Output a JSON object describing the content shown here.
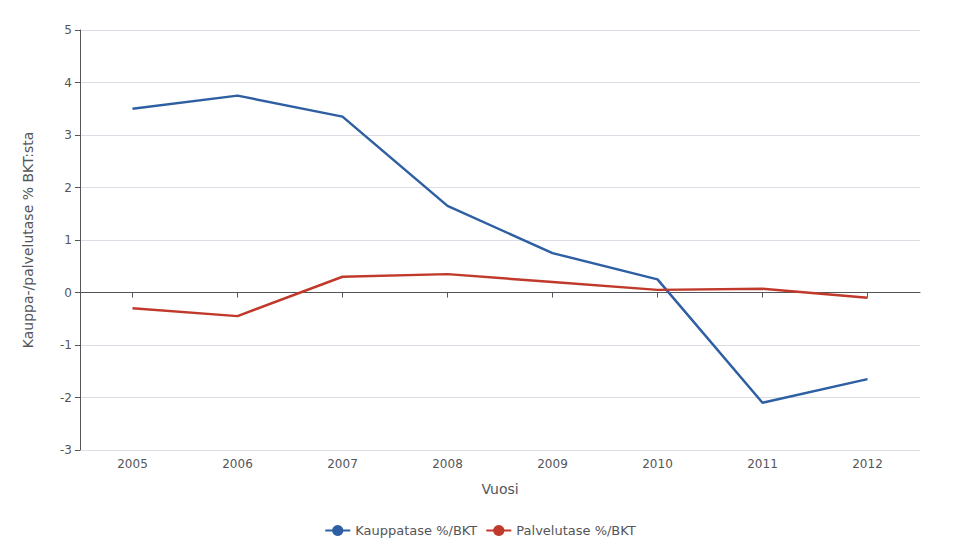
{
  "chart_data": {
    "type": "line",
    "x": [
      2005,
      2006,
      2007,
      2008,
      2009,
      2010,
      2011,
      2012
    ],
    "xlabel": "Vuosi",
    "ylabel": "Kauppa-/palvelutase % BKT:sta",
    "series": [
      {
        "name": "Kauppatase %/BKT",
        "color": "#2e5fa3",
        "values": [
          3.5,
          3.75,
          3.35,
          1.65,
          0.75,
          0.25,
          -2.1,
          -1.65
        ]
      },
      {
        "name": "Palvelutase %/BKT",
        "color": "#c0392b",
        "values": [
          -0.3,
          -0.45,
          0.3,
          0.35,
          0.2,
          0.05,
          0.07,
          -0.1
        ]
      }
    ],
    "xlim": [
      2004.5,
      2012.5
    ],
    "xticks": [
      2005,
      2006,
      2007,
      2008,
      2009,
      2010,
      2011,
      2012
    ],
    "ylim": [
      -3,
      5
    ],
    "yticks": [
      -3,
      -2,
      -1,
      0,
      1,
      2,
      3,
      4,
      5
    ],
    "grid": "y",
    "legend": "bottom"
  }
}
